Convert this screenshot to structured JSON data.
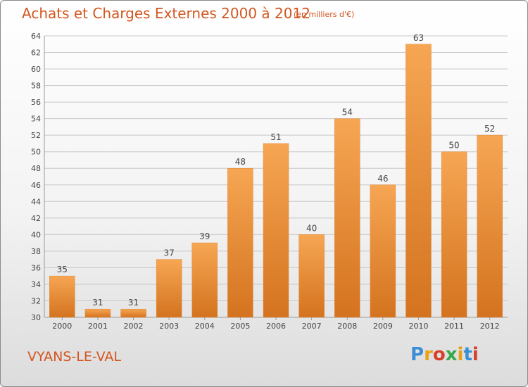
{
  "header": {
    "title": "Achats et Charges Externes 2000 à 2012",
    "subtitle": "(en milliers d'€)"
  },
  "footer": {
    "town": "VYANS-LE-VAL",
    "logo": {
      "letters": [
        "P",
        "r",
        "o",
        "x",
        "i",
        "t",
        "i"
      ],
      "colors": [
        "#3a8fd6",
        "#e8a21a",
        "#d6402a",
        "#3aa84a",
        "#e8a21a",
        "#3a8fd6",
        "#d6402a"
      ]
    }
  },
  "colors": {
    "bar_light": "#f6a653",
    "bar_dark": "#d4731f",
    "text": "#444444",
    "grid": "#c8c8c8",
    "accent": "#d4551f"
  },
  "chart_data": {
    "type": "bar",
    "categories": [
      "2000",
      "2001",
      "2002",
      "2003",
      "2004",
      "2005",
      "2006",
      "2007",
      "2008",
      "2009",
      "2010",
      "2011",
      "2012"
    ],
    "values": [
      35,
      31,
      31,
      37,
      39,
      48,
      51,
      40,
      54,
      46,
      63,
      50,
      52
    ],
    "ylim": [
      30,
      64
    ],
    "yticks": [
      30,
      32,
      34,
      36,
      38,
      40,
      42,
      44,
      46,
      48,
      50,
      52,
      54,
      56,
      58,
      60,
      62,
      64
    ],
    "title": "Achats et Charges Externes 2000 à 2012",
    "grid": true
  }
}
